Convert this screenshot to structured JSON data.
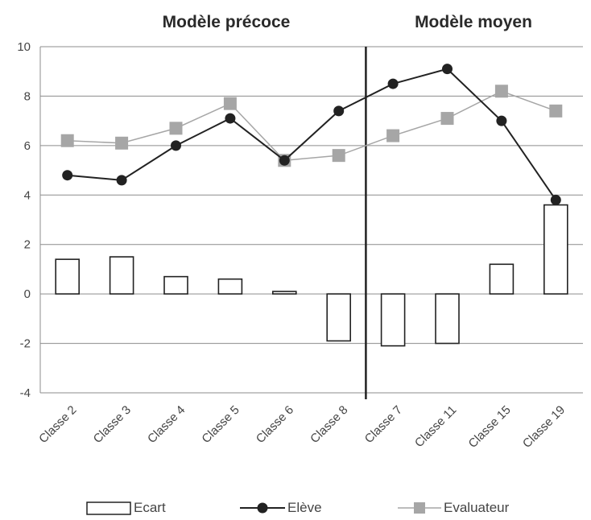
{
  "chart_data": {
    "type": "bar",
    "panel_titles": [
      "Modèle précoce",
      "Modèle moyen"
    ],
    "panel_split_after_index": 5,
    "categories": [
      "Classe 2",
      "Classe 3",
      "Classe 4",
      "Classe 5",
      "Classe 6",
      "Classe 8",
      "Classe 7",
      "Classe 11",
      "Classe 15",
      "Classe 19"
    ],
    "ylim": [
      -4,
      10
    ],
    "yticks": [
      -4,
      -2,
      0,
      2,
      4,
      6,
      8,
      10
    ],
    "grid": true,
    "legend_position": "bottom",
    "series": [
      {
        "name": "Ecart",
        "type": "bar",
        "color": "#ffffff",
        "stroke": "#222222",
        "values": [
          1.4,
          1.5,
          0.7,
          0.6,
          0.1,
          -1.9,
          -2.1,
          -2.0,
          1.2,
          3.6
        ]
      },
      {
        "name": "Elève",
        "type": "line",
        "color": "#222222",
        "marker": "circle",
        "values": [
          4.8,
          4.6,
          6.0,
          7.1,
          5.4,
          7.4,
          8.5,
          9.1,
          7.0,
          3.8
        ]
      },
      {
        "name": "Evaluateur",
        "type": "line",
        "color": "#a6a6a6",
        "marker": "square",
        "values": [
          6.2,
          6.1,
          6.7,
          7.7,
          5.4,
          5.6,
          6.4,
          7.1,
          8.2,
          7.4
        ]
      }
    ]
  }
}
